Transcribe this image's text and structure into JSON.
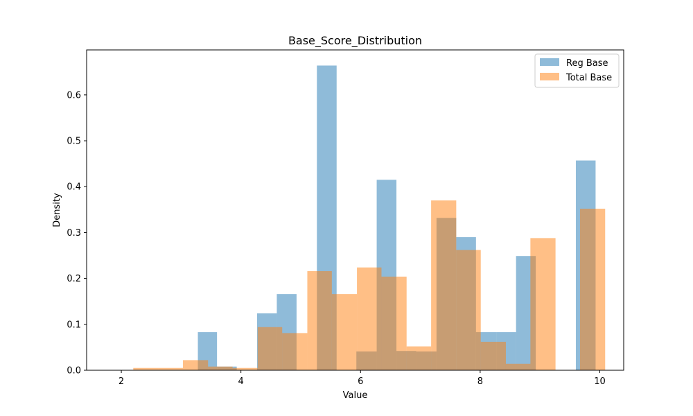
{
  "chart_data": {
    "type": "histogram",
    "title": "Base_Score_Distribution",
    "xlabel": "Value",
    "ylabel": "Density",
    "xlim": [
      1.42,
      10.4
    ],
    "ylim": [
      0,
      0.698
    ],
    "xticks": [
      2,
      4,
      6,
      8,
      10
    ],
    "yticks": [
      0.0,
      0.1,
      0.2,
      0.3,
      0.4,
      0.5,
      0.6
    ],
    "ytick_labels": [
      "0.0",
      "0.1",
      "0.2",
      "0.3",
      "0.4",
      "0.5",
      "0.6"
    ],
    "legend_position": "upper right",
    "series": [
      {
        "name": "Reg Base",
        "color": "#1f77b4",
        "alpha": 0.5,
        "bins": [
          {
            "x0": 1.8,
            "x1": 2.2,
            "density": 0.0
          },
          {
            "x0": 3.28,
            "x1": 3.6,
            "density": 0.083
          },
          {
            "x0": 3.6,
            "x1": 3.93,
            "density": 0.008
          },
          {
            "x0": 4.27,
            "x1": 4.6,
            "density": 0.124
          },
          {
            "x0": 4.6,
            "x1": 4.93,
            "density": 0.166
          },
          {
            "x0": 5.27,
            "x1": 5.6,
            "density": 0.664
          },
          {
            "x0": 5.93,
            "x1": 6.27,
            "density": 0.041
          },
          {
            "x0": 6.27,
            "x1": 6.6,
            "density": 0.415
          },
          {
            "x0": 6.6,
            "x1": 6.93,
            "density": 0.042
          },
          {
            "x0": 6.93,
            "x1": 7.27,
            "density": 0.041
          },
          {
            "x0": 7.27,
            "x1": 7.6,
            "density": 0.332
          },
          {
            "x0": 7.6,
            "x1": 7.93,
            "density": 0.29
          },
          {
            "x0": 7.93,
            "x1": 8.27,
            "density": 0.083
          },
          {
            "x0": 8.27,
            "x1": 8.6,
            "density": 0.083
          },
          {
            "x0": 8.6,
            "x1": 8.93,
            "density": 0.249
          },
          {
            "x0": 9.6,
            "x1": 9.93,
            "density": 0.457
          }
        ]
      },
      {
        "name": "Total Base",
        "color": "#ff7f0e",
        "alpha": 0.5,
        "bins": [
          {
            "x0": 2.2,
            "x1": 2.62,
            "density": 0.005
          },
          {
            "x0": 2.62,
            "x1": 3.03,
            "density": 0.005
          },
          {
            "x0": 3.03,
            "x1": 3.45,
            "density": 0.022
          },
          {
            "x0": 3.45,
            "x1": 3.86,
            "density": 0.008
          },
          {
            "x0": 3.86,
            "x1": 4.28,
            "density": 0.005
          },
          {
            "x0": 4.28,
            "x1": 4.69,
            "density": 0.094
          },
          {
            "x0": 4.69,
            "x1": 5.11,
            "density": 0.081
          },
          {
            "x0": 5.11,
            "x1": 5.52,
            "density": 0.216
          },
          {
            "x0": 5.52,
            "x1": 5.94,
            "density": 0.166
          },
          {
            "x0": 5.94,
            "x1": 6.35,
            "density": 0.224
          },
          {
            "x0": 6.35,
            "x1": 6.77,
            "density": 0.204
          },
          {
            "x0": 6.77,
            "x1": 7.18,
            "density": 0.052
          },
          {
            "x0": 7.18,
            "x1": 7.6,
            "density": 0.37
          },
          {
            "x0": 7.6,
            "x1": 8.01,
            "density": 0.262
          },
          {
            "x0": 8.01,
            "x1": 8.43,
            "density": 0.062
          },
          {
            "x0": 8.43,
            "x1": 8.84,
            "density": 0.014
          },
          {
            "x0": 8.84,
            "x1": 9.26,
            "density": 0.288
          },
          {
            "x0": 9.26,
            "x1": 9.67,
            "density": 0.0
          },
          {
            "x0": 9.67,
            "x1": 10.09,
            "density": 0.352
          }
        ]
      }
    ]
  }
}
